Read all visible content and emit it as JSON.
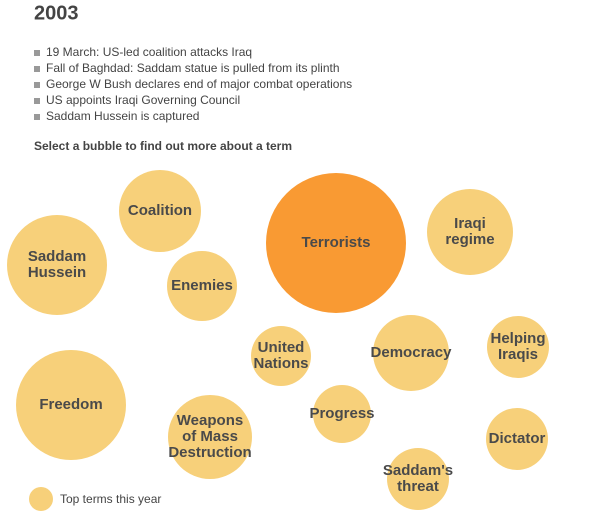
{
  "header": {
    "title": "2003"
  },
  "events": [
    "19 March: US-led coalition attacks Iraq",
    "Fall of Baghdad: Saddam statue is pulled from its plinth",
    "George W Bush declares end of major combat operations",
    "US appoints Iraqi Governing Council",
    "Saddam Hussein is captured"
  ],
  "instruction": "Select a bubble to find out more about a term",
  "bubbles": [
    {
      "label": [
        "Coalition"
      ]
    },
    {
      "label": [
        "Saddam",
        "Hussein"
      ]
    },
    {
      "label": [
        "Enemies"
      ]
    },
    {
      "label": [
        "Terrorists"
      ]
    },
    {
      "label": [
        "Iraqi",
        "regime"
      ]
    },
    {
      "label": [
        "United",
        "Nations"
      ]
    },
    {
      "label": [
        "Democracy"
      ]
    },
    {
      "label": [
        "Helping",
        "Iraqis"
      ]
    },
    {
      "label": [
        "Freedom"
      ]
    },
    {
      "label": [
        "Weapons",
        "of Mass",
        "Destruction"
      ]
    },
    {
      "label": [
        "Progress"
      ]
    },
    {
      "label": [
        "Dictator"
      ]
    },
    {
      "label": [
        "Saddam's",
        "threat"
      ]
    }
  ],
  "legend": {
    "label": "Top terms this year"
  }
}
